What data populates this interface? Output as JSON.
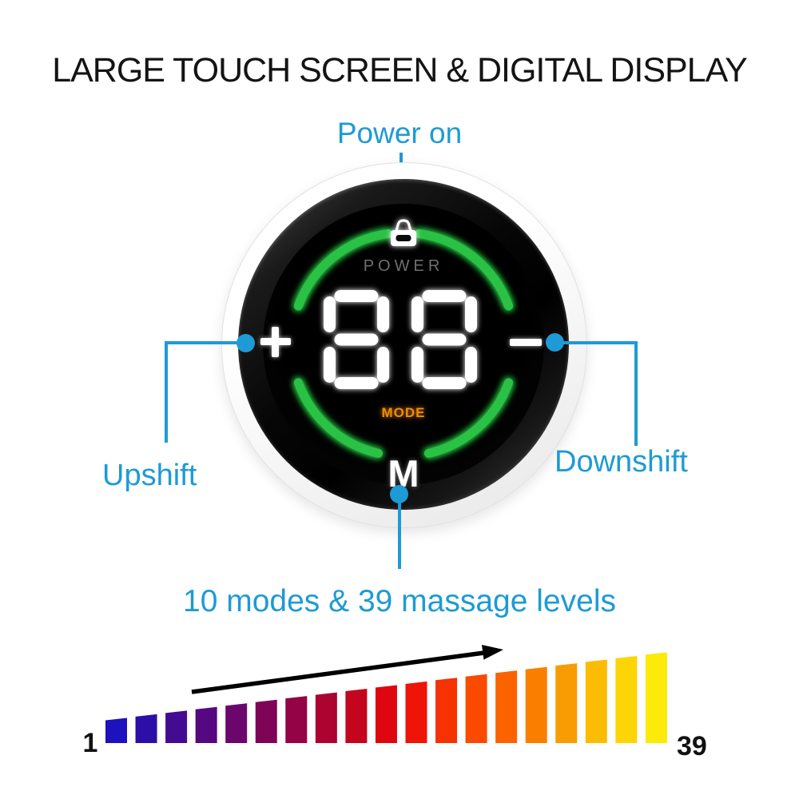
{
  "title": "LARGE TOUCH SCREEN & DIGITAL DISPLAY",
  "accent_color": "#1E9AD6",
  "callouts": {
    "power_on": "Power on",
    "upshift": "Upshift",
    "downshift": "Downshift",
    "modes_note": "10 modes & 39 massage levels"
  },
  "device": {
    "power_label": "POWER",
    "display_value": "88",
    "mode_label": "MODE",
    "m_button_label": "M",
    "plus_symbol": "+",
    "minus_symbol": "−",
    "arc_color": "#2BC244",
    "mode_color": "#F18E00",
    "digit_color": "#FFFFFF"
  },
  "chart_data": {
    "type": "bar",
    "title": "",
    "min_label": "1",
    "max_label": "39",
    "bar_count": 19,
    "bar_colors": [
      "#1C13BE",
      "#2B0FA6",
      "#430B92",
      "#560880",
      "#6B066C",
      "#7F0458",
      "#930345",
      "#AB0430",
      "#C4051E",
      "#DE0710",
      "#EE1407",
      "#F63102",
      "#FA4A00",
      "#FB6300",
      "#FA7E00",
      "#F79C02",
      "#FBBC03",
      "#FDD405",
      "#FBEA0A"
    ],
    "annotation": "increasing-intensity-arrow"
  }
}
